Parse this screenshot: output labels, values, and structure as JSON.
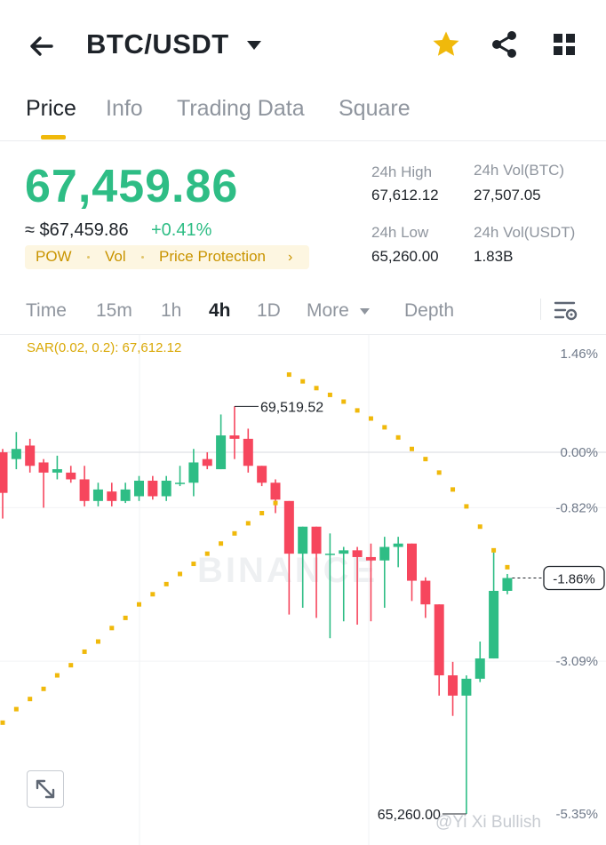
{
  "header": {
    "title": "BTC/USDT",
    "icons": [
      "back-arrow-icon",
      "caret-down-icon",
      "star-icon",
      "share-icon",
      "grid-icon"
    ],
    "star_color": "#f0b90b"
  },
  "tabs": [
    {
      "label": "Price",
      "active": true
    },
    {
      "label": "Info",
      "active": false
    },
    {
      "label": "Trading Data",
      "active": false
    },
    {
      "label": "Square",
      "active": false
    }
  ],
  "ticker": {
    "last_price": "67,459.86",
    "approx_usd": "≈ $67,459.86",
    "change": "+0.41%",
    "tags": [
      "POW",
      "Vol",
      "Price Protection"
    ],
    "stats": {
      "high_label": "24h High",
      "high_value": "67,612.12",
      "low_label": "24h Low",
      "low_value": "65,260.00",
      "vol_btc_label": "24h Vol(BTC)",
      "vol_btc_value": "27,507.05",
      "vol_usdt_label": "24h Vol(USDT)",
      "vol_usdt_value": "1.83B"
    },
    "up_color": "#2ebd85",
    "down_color": "#f6465d"
  },
  "intervals": [
    {
      "label": "Time",
      "active": false
    },
    {
      "label": "15m",
      "active": false
    },
    {
      "label": "1h",
      "active": false
    },
    {
      "label": "4h",
      "active": true
    },
    {
      "label": "1D",
      "active": false
    },
    {
      "label": "More",
      "active": false
    },
    {
      "label": "Depth",
      "active": false
    }
  ],
  "chart": {
    "indicator_label": "SAR(0.02, 0.2): 67,612.12",
    "watermark": "BINANCE",
    "author": "@Yi Xi Bullish"
  },
  "chart_data": {
    "type": "candlestick",
    "y_axis": "percent",
    "ylim": [
      -5.35,
      1.46
    ],
    "ticks": [
      1.46,
      0.0,
      -0.82,
      -1.86,
      -3.09,
      -5.35
    ],
    "tick_labels": [
      "1.46%",
      "0.00%",
      "-0.82%",
      "-1.86%",
      "-3.09%",
      "-5.35%"
    ],
    "current_label": "-1.86%",
    "high_annotation": "69,519.52",
    "low_annotation": "65,260.00",
    "candles": [
      [
        0.0,
        -0.6,
        0.05,
        -0.98
      ],
      [
        -0.1,
        0.05,
        0.3,
        -0.25
      ],
      [
        0.1,
        -0.2,
        0.2,
        -0.3
      ],
      [
        -0.15,
        -0.3,
        -0.1,
        -0.82
      ],
      [
        -0.3,
        -0.25,
        -0.05,
        -0.4
      ],
      [
        -0.3,
        -0.4,
        -0.2,
        -0.45
      ],
      [
        -0.4,
        -0.72,
        -0.2,
        -0.8
      ],
      [
        -0.72,
        -0.55,
        -0.45,
        -0.8
      ],
      [
        -0.58,
        -0.72,
        -0.45,
        -0.8
      ],
      [
        -0.72,
        -0.55,
        -0.45,
        -0.75
      ],
      [
        -0.65,
        -0.42,
        -0.35,
        -0.72
      ],
      [
        -0.42,
        -0.65,
        -0.35,
        -0.7
      ],
      [
        -0.65,
        -0.42,
        -0.35,
        -0.72
      ],
      [
        -0.45,
        -0.45,
        -0.2,
        -0.5
      ],
      [
        -0.45,
        -0.15,
        0.05,
        -0.65
      ],
      [
        -0.1,
        -0.2,
        0.0,
        -0.25
      ],
      [
        -0.25,
        0.25,
        0.56,
        -0.25
      ],
      [
        0.25,
        0.2,
        0.68,
        -0.1
      ],
      [
        0.2,
        -0.2,
        0.35,
        -0.3
      ],
      [
        -0.2,
        -0.45,
        -0.2,
        -0.5
      ],
      [
        -0.45,
        -0.7,
        -0.4,
        -0.9
      ],
      [
        -0.72,
        -1.5,
        -0.72,
        -2.4
      ],
      [
        -1.5,
        -1.1,
        -1.1,
        -2.3
      ],
      [
        -1.1,
        -1.5,
        -1.1,
        -2.45
      ],
      [
        -1.5,
        -1.5,
        -1.2,
        -2.75
      ],
      [
        -1.5,
        -1.45,
        -1.4,
        -2.5
      ],
      [
        -1.45,
        -1.55,
        -1.4,
        -2.55
      ],
      [
        -1.55,
        -1.6,
        -1.35,
        -2.5
      ],
      [
        -1.6,
        -1.4,
        -1.25,
        -2.3
      ],
      [
        -1.4,
        -1.35,
        -1.25,
        -1.7
      ],
      [
        -1.35,
        -1.9,
        -1.35,
        -2.2
      ],
      [
        -1.9,
        -2.25,
        -1.85,
        -2.45
      ],
      [
        -2.25,
        -3.3,
        -2.25,
        -3.6
      ],
      [
        -3.3,
        -3.6,
        -3.1,
        -3.9
      ],
      [
        -3.6,
        -3.35,
        -3.3,
        -5.35
      ],
      [
        -3.35,
        -3.05,
        -2.8,
        -3.4
      ],
      [
        -3.05,
        -2.05,
        -1.45,
        -3.05
      ],
      [
        -2.05,
        -1.86,
        -1.8,
        -2.1
      ]
    ],
    "sar": [
      [
        0,
        -4.0
      ],
      [
        1,
        -3.8
      ],
      [
        2,
        -3.65
      ],
      [
        3,
        -3.5
      ],
      [
        4,
        -3.3
      ],
      [
        5,
        -3.15
      ],
      [
        6,
        -2.95
      ],
      [
        7,
        -2.8
      ],
      [
        8,
        -2.6
      ],
      [
        9,
        -2.45
      ],
      [
        10,
        -2.25
      ],
      [
        11,
        -2.1
      ],
      [
        12,
        -1.95
      ],
      [
        13,
        -1.8
      ],
      [
        14,
        -1.65
      ],
      [
        15,
        -1.5
      ],
      [
        16,
        -1.35
      ],
      [
        17,
        -1.2
      ],
      [
        18,
        -1.05
      ],
      [
        19,
        -0.9
      ],
      [
        20,
        -0.75
      ],
      [
        21,
        1.15
      ],
      [
        22,
        1.05
      ],
      [
        23,
        0.95
      ],
      [
        24,
        0.85
      ],
      [
        25,
        0.75
      ],
      [
        26,
        0.62
      ],
      [
        27,
        0.5
      ],
      [
        28,
        0.37
      ],
      [
        29,
        0.22
      ],
      [
        30,
        0.05
      ],
      [
        31,
        -0.1
      ],
      [
        32,
        -0.3
      ],
      [
        33,
        -0.55
      ],
      [
        34,
        -0.8
      ],
      [
        35,
        -1.1
      ],
      [
        36,
        -1.45
      ],
      [
        37,
        -1.7
      ]
    ]
  }
}
